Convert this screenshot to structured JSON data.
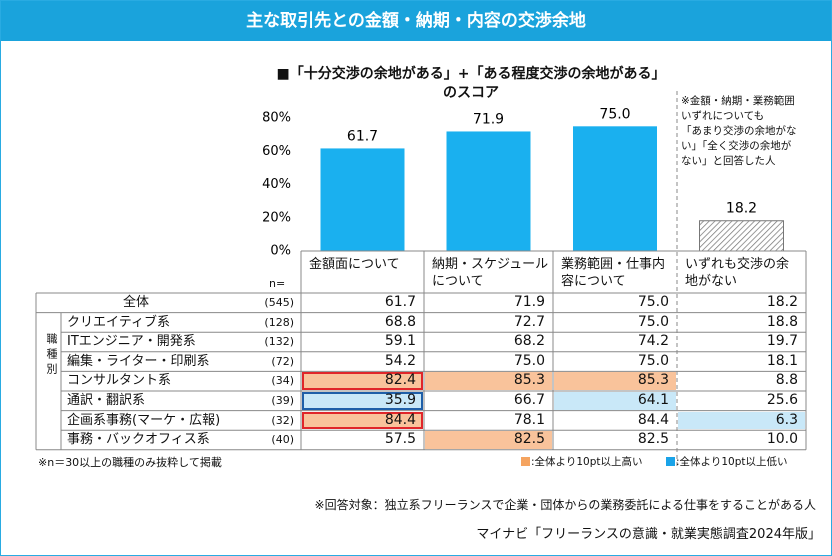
{
  "page_title": "主な取引先との金額・納期・内容の交渉余地",
  "chart_data": {
    "type": "bar",
    "title": "■「十分交渉の余地がある」+「ある程度交渉の余地がある」\nのスコア",
    "categories": [
      "金額面について",
      "納期・スケジュール\nについて",
      "業務範囲・仕事内\n容について",
      "いずれも交渉の余\n地がない"
    ],
    "values": [
      61.7,
      71.9,
      75.0,
      18.2
    ],
    "value_labels": [
      "61.7",
      "71.9",
      "75.0",
      "18.2"
    ],
    "color": "#1ab0ef",
    "hatched": [
      false,
      false,
      false,
      true
    ],
    "ylim": [
      0,
      80
    ],
    "yticks": [
      {
        "value": 0,
        "label": "0%"
      },
      {
        "value": 20,
        "label": "20%"
      },
      {
        "value": 40,
        "label": "40%"
      },
      {
        "value": 60,
        "label": "60%"
      },
      {
        "value": 80,
        "label": "80%"
      }
    ],
    "grid": false,
    "note": "※金額・納期・業務範囲\nいずれについても\n「あまり交渉の余地がな\nい」「全く交渉の余地が\nない」と回答した人"
  },
  "table": {
    "n_label": "n=",
    "group_label": "職種別",
    "rows": [
      {
        "label": "全体",
        "n": "(545)",
        "cells": [
          "61.7",
          "71.9",
          "75.0",
          "18.2"
        ],
        "fill": [
          null,
          null,
          null,
          null
        ],
        "frame": [
          null,
          null,
          null,
          null
        ]
      },
      {
        "label": "クリエイティブ系",
        "n": "(128)",
        "cells": [
          "68.8",
          "72.7",
          "75.0",
          "18.8"
        ],
        "fill": [
          null,
          null,
          null,
          null
        ],
        "frame": [
          null,
          null,
          null,
          null
        ]
      },
      {
        "label": "ITエンジニア・開発系",
        "n": "(132)",
        "cells": [
          "59.1",
          "68.2",
          "74.2",
          "19.7"
        ],
        "fill": [
          null,
          null,
          null,
          null
        ],
        "frame": [
          null,
          null,
          null,
          null
        ]
      },
      {
        "label": "編集・ライター・印刷系",
        "n": "(72)",
        "cells": [
          "54.2",
          "75.0",
          "75.0",
          "18.1"
        ],
        "fill": [
          null,
          null,
          null,
          null
        ],
        "frame": [
          null,
          null,
          null,
          null
        ]
      },
      {
        "label": "コンサルタント系",
        "n": "(34)",
        "cells": [
          "82.4",
          "85.3",
          "85.3",
          "8.8"
        ],
        "fill": [
          "#f9c39b",
          "#f9c39b",
          "#f9c39b",
          null
        ],
        "frame": [
          "#e0262a",
          null,
          null,
          null
        ]
      },
      {
        "label": "通訳・翻訳系",
        "n": "(39)",
        "cells": [
          "35.9",
          "66.7",
          "64.1",
          "25.6"
        ],
        "fill": [
          "#c9e8f8",
          null,
          "#c9e8f8",
          null
        ],
        "frame": [
          "#1f5fa8",
          null,
          null,
          null
        ]
      },
      {
        "label": "企画系事務(マーケ・広報)",
        "n": "(32)",
        "cells": [
          "84.4",
          "78.1",
          "84.4",
          "6.3"
        ],
        "fill": [
          "#f9c39b",
          null,
          null,
          "#c9e8f8"
        ],
        "frame": [
          "#e0262a",
          null,
          null,
          null
        ]
      },
      {
        "label": "事務・バックオフィス系",
        "n": "(40)",
        "cells": [
          "57.5",
          "82.5",
          "82.5",
          "10.0"
        ],
        "fill": [
          null,
          "#f9c39b",
          null,
          null
        ],
        "frame": [
          null,
          null,
          null,
          null
        ]
      }
    ]
  },
  "legend": [
    {
      "label": ":全体より10pt以上高い",
      "color": "#f5a460"
    },
    {
      "label": ":全体より10pt以上低い",
      "color": "#1aa3e8"
    }
  ],
  "footnote": "※n＝30以上の職種のみ抜粋して掲載",
  "respondents": "※回答対象：独立系フリーランスで企業・団体からの業務委託による仕事をすることがある人",
  "source": "マイナビ「フリーランスの意識・就業実態調査2024年版」"
}
